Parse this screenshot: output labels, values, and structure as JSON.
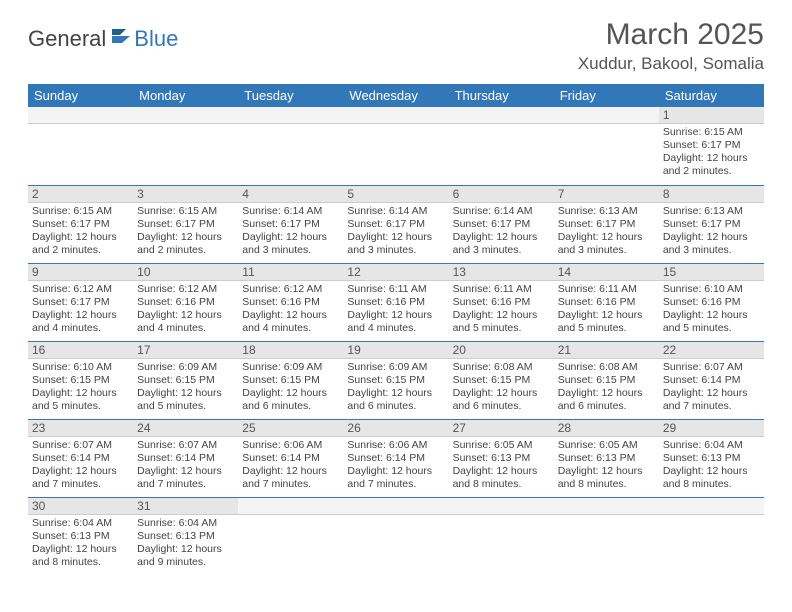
{
  "brand": {
    "general": "General",
    "blue": "Blue"
  },
  "title": "March 2025",
  "location": "Xuddur, Bakool, Somalia",
  "colors": {
    "header_bg": "#3278b8",
    "header_fg": "#ffffff",
    "daynum_bg": "#e6e6e6",
    "border": "#3278b8",
    "text": "#444444"
  },
  "weekdays": [
    "Sunday",
    "Monday",
    "Tuesday",
    "Wednesday",
    "Thursday",
    "Friday",
    "Saturday"
  ],
  "weeks": [
    [
      null,
      null,
      null,
      null,
      null,
      null,
      {
        "n": "1",
        "sunrise": "Sunrise: 6:15 AM",
        "sunset": "Sunset: 6:17 PM",
        "daylight": "Daylight: 12 hours and 2 minutes."
      }
    ],
    [
      {
        "n": "2",
        "sunrise": "Sunrise: 6:15 AM",
        "sunset": "Sunset: 6:17 PM",
        "daylight": "Daylight: 12 hours and 2 minutes."
      },
      {
        "n": "3",
        "sunrise": "Sunrise: 6:15 AM",
        "sunset": "Sunset: 6:17 PM",
        "daylight": "Daylight: 12 hours and 2 minutes."
      },
      {
        "n": "4",
        "sunrise": "Sunrise: 6:14 AM",
        "sunset": "Sunset: 6:17 PM",
        "daylight": "Daylight: 12 hours and 3 minutes."
      },
      {
        "n": "5",
        "sunrise": "Sunrise: 6:14 AM",
        "sunset": "Sunset: 6:17 PM",
        "daylight": "Daylight: 12 hours and 3 minutes."
      },
      {
        "n": "6",
        "sunrise": "Sunrise: 6:14 AM",
        "sunset": "Sunset: 6:17 PM",
        "daylight": "Daylight: 12 hours and 3 minutes."
      },
      {
        "n": "7",
        "sunrise": "Sunrise: 6:13 AM",
        "sunset": "Sunset: 6:17 PM",
        "daylight": "Daylight: 12 hours and 3 minutes."
      },
      {
        "n": "8",
        "sunrise": "Sunrise: 6:13 AM",
        "sunset": "Sunset: 6:17 PM",
        "daylight": "Daylight: 12 hours and 3 minutes."
      }
    ],
    [
      {
        "n": "9",
        "sunrise": "Sunrise: 6:12 AM",
        "sunset": "Sunset: 6:17 PM",
        "daylight": "Daylight: 12 hours and 4 minutes."
      },
      {
        "n": "10",
        "sunrise": "Sunrise: 6:12 AM",
        "sunset": "Sunset: 6:16 PM",
        "daylight": "Daylight: 12 hours and 4 minutes."
      },
      {
        "n": "11",
        "sunrise": "Sunrise: 6:12 AM",
        "sunset": "Sunset: 6:16 PM",
        "daylight": "Daylight: 12 hours and 4 minutes."
      },
      {
        "n": "12",
        "sunrise": "Sunrise: 6:11 AM",
        "sunset": "Sunset: 6:16 PM",
        "daylight": "Daylight: 12 hours and 4 minutes."
      },
      {
        "n": "13",
        "sunrise": "Sunrise: 6:11 AM",
        "sunset": "Sunset: 6:16 PM",
        "daylight": "Daylight: 12 hours and 5 minutes."
      },
      {
        "n": "14",
        "sunrise": "Sunrise: 6:11 AM",
        "sunset": "Sunset: 6:16 PM",
        "daylight": "Daylight: 12 hours and 5 minutes."
      },
      {
        "n": "15",
        "sunrise": "Sunrise: 6:10 AM",
        "sunset": "Sunset: 6:16 PM",
        "daylight": "Daylight: 12 hours and 5 minutes."
      }
    ],
    [
      {
        "n": "16",
        "sunrise": "Sunrise: 6:10 AM",
        "sunset": "Sunset: 6:15 PM",
        "daylight": "Daylight: 12 hours and 5 minutes."
      },
      {
        "n": "17",
        "sunrise": "Sunrise: 6:09 AM",
        "sunset": "Sunset: 6:15 PM",
        "daylight": "Daylight: 12 hours and 5 minutes."
      },
      {
        "n": "18",
        "sunrise": "Sunrise: 6:09 AM",
        "sunset": "Sunset: 6:15 PM",
        "daylight": "Daylight: 12 hours and 6 minutes."
      },
      {
        "n": "19",
        "sunrise": "Sunrise: 6:09 AM",
        "sunset": "Sunset: 6:15 PM",
        "daylight": "Daylight: 12 hours and 6 minutes."
      },
      {
        "n": "20",
        "sunrise": "Sunrise: 6:08 AM",
        "sunset": "Sunset: 6:15 PM",
        "daylight": "Daylight: 12 hours and 6 minutes."
      },
      {
        "n": "21",
        "sunrise": "Sunrise: 6:08 AM",
        "sunset": "Sunset: 6:15 PM",
        "daylight": "Daylight: 12 hours and 6 minutes."
      },
      {
        "n": "22",
        "sunrise": "Sunrise: 6:07 AM",
        "sunset": "Sunset: 6:14 PM",
        "daylight": "Daylight: 12 hours and 7 minutes."
      }
    ],
    [
      {
        "n": "23",
        "sunrise": "Sunrise: 6:07 AM",
        "sunset": "Sunset: 6:14 PM",
        "daylight": "Daylight: 12 hours and 7 minutes."
      },
      {
        "n": "24",
        "sunrise": "Sunrise: 6:07 AM",
        "sunset": "Sunset: 6:14 PM",
        "daylight": "Daylight: 12 hours and 7 minutes."
      },
      {
        "n": "25",
        "sunrise": "Sunrise: 6:06 AM",
        "sunset": "Sunset: 6:14 PM",
        "daylight": "Daylight: 12 hours and 7 minutes."
      },
      {
        "n": "26",
        "sunrise": "Sunrise: 6:06 AM",
        "sunset": "Sunset: 6:14 PM",
        "daylight": "Daylight: 12 hours and 7 minutes."
      },
      {
        "n": "27",
        "sunrise": "Sunrise: 6:05 AM",
        "sunset": "Sunset: 6:13 PM",
        "daylight": "Daylight: 12 hours and 8 minutes."
      },
      {
        "n": "28",
        "sunrise": "Sunrise: 6:05 AM",
        "sunset": "Sunset: 6:13 PM",
        "daylight": "Daylight: 12 hours and 8 minutes."
      },
      {
        "n": "29",
        "sunrise": "Sunrise: 6:04 AM",
        "sunset": "Sunset: 6:13 PM",
        "daylight": "Daylight: 12 hours and 8 minutes."
      }
    ],
    [
      {
        "n": "30",
        "sunrise": "Sunrise: 6:04 AM",
        "sunset": "Sunset: 6:13 PM",
        "daylight": "Daylight: 12 hours and 8 minutes."
      },
      {
        "n": "31",
        "sunrise": "Sunrise: 6:04 AM",
        "sunset": "Sunset: 6:13 PM",
        "daylight": "Daylight: 12 hours and 9 minutes."
      },
      null,
      null,
      null,
      null,
      null
    ]
  ]
}
